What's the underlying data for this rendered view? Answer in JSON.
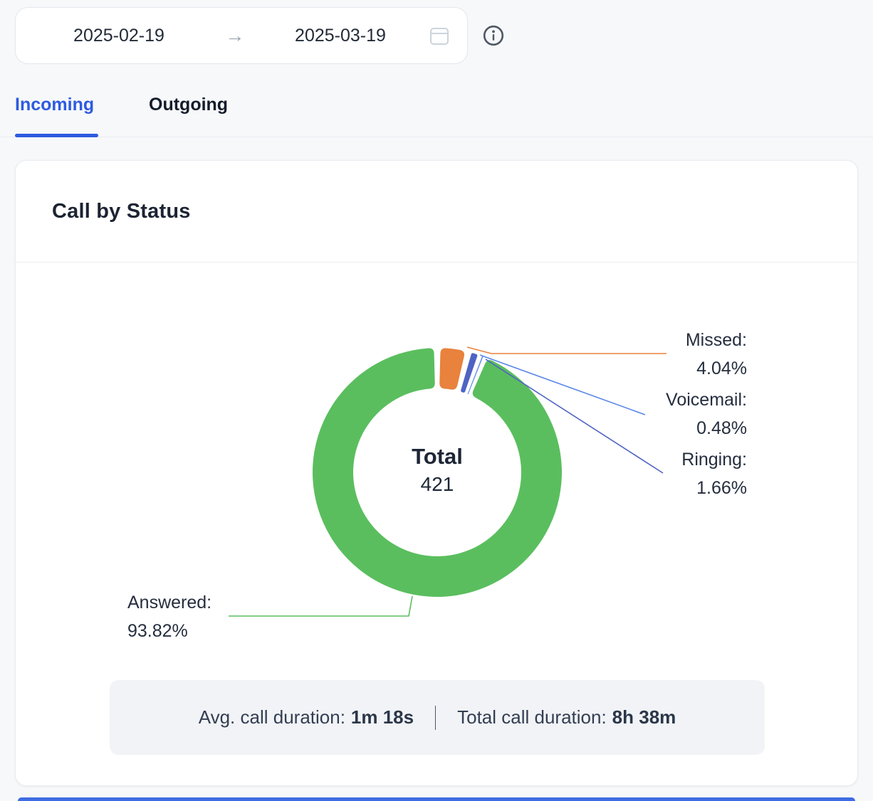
{
  "date_range": {
    "start": "2025-02-19",
    "end": "2025-03-19"
  },
  "tabs": {
    "incoming": "Incoming",
    "outgoing": "Outgoing",
    "active": "Incoming"
  },
  "card": {
    "title": "Call by Status"
  },
  "chart_data": {
    "type": "pie",
    "donut": true,
    "title": "Call by Status",
    "center_label": {
      "title": "Total",
      "value": "421"
    },
    "total_calls": 421,
    "segments": [
      {
        "label": "Missed",
        "pct": 4.04,
        "color": "#e8823c"
      },
      {
        "label": "Ringing",
        "pct": 1.66,
        "color": "#4f63c4"
      },
      {
        "label": "Voicemail",
        "pct": 0.48,
        "color": "#5b87e8"
      },
      {
        "label": "Answered",
        "pct": 93.82,
        "color": "#5abe5e"
      }
    ],
    "labels": {
      "missed": {
        "name": "Missed:",
        "value": "4.04%"
      },
      "voicemail": {
        "name": "Voicemail:",
        "value": "0.48%"
      },
      "ringing": {
        "name": "Ringing:",
        "value": "1.66%"
      },
      "answered": {
        "name": "Answered:",
        "value": "93.82%"
      }
    },
    "legend_position": "callout-labels",
    "start_angle": "top",
    "direction": "clockwise"
  },
  "stats": {
    "avg_label": "Avg. call duration:",
    "avg_value": "1m 18s",
    "separator": "|",
    "total_label": "Total call duration:",
    "total_value": "8h 38m"
  },
  "colors": {
    "accent_blue": "#2e5be0",
    "answered_green": "#5abe5e",
    "missed_orange": "#e8823c",
    "ringing_indigo": "#4f63c4",
    "voicemail_blue": "#5b87e8",
    "page_bg": "#f7f8fa",
    "stats_bg": "#f1f3f6"
  }
}
